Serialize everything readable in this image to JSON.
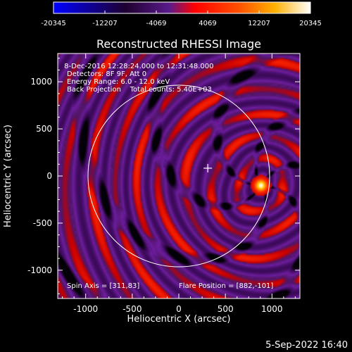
{
  "chart_data": {
    "type": "heatmap",
    "title": "Reconstructed RHESSI Image",
    "xlabel": "Heliocentric X (arcsec)",
    "ylabel": "Heliocentric Y (arcsec)",
    "xlim": [
      -1300,
      1300
    ],
    "ylim": [
      -1300,
      1300
    ],
    "x_ticks": [
      -1000,
      -500,
      0,
      500,
      1000
    ],
    "y_ticks": [
      -1000,
      -500,
      0,
      500,
      1000
    ],
    "colorbar": {
      "range": [
        -20345,
        20345
      ],
      "ticks": [
        -20345,
        -12207,
        -4069,
        4069,
        12207,
        20345
      ],
      "tick_labels": [
        "-20345",
        "-12207",
        "-4069",
        "4069",
        "12207",
        "20345"
      ],
      "colors": [
        "#0000ff",
        "#000000",
        "#5a1a8a",
        "#ff0000",
        "#ff9a00",
        "#ffffff"
      ]
    },
    "info_lines": [
      " 8-Dec-2016 12:28:24.000 to 12:31:48.000",
      "Detectors: 8F 9F, Att 0",
      "Energy Range: 6.0 - 12.0 keV",
      "Back Projection    Total counts: 5.40E+03"
    ],
    "spin_axis": "Spin Axis = [311,83]",
    "flare_position": "Flare Position = [882,-101]",
    "source_center": [
      882,
      -101
    ],
    "spin_center": [
      311,
      83
    ],
    "solar_radius": 975,
    "ring_spacing": 265
  },
  "timestamp": "5-Sep-2022 16:40"
}
